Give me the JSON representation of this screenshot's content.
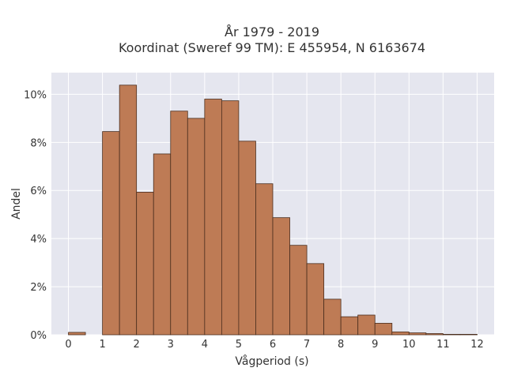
{
  "chart_data": {
    "type": "bar",
    "title": "År 1979 - 2019",
    "subtitle": "Koordinat (Sweref 99 TM): E 455954, N 6163674",
    "xlabel": "Vågperiod (s)",
    "ylabel": "Andel",
    "x_ticks": [
      "0",
      "1",
      "2",
      "3",
      "4",
      "5",
      "6",
      "7",
      "8",
      "9",
      "10",
      "11",
      "12"
    ],
    "y_ticks": [
      "0%",
      "2%",
      "4%",
      "6%",
      "8%",
      "10%"
    ],
    "y_tick_values": [
      0,
      2,
      4,
      6,
      8,
      10
    ],
    "xlim": [
      -0.5,
      12.5
    ],
    "ylim": [
      0,
      10.9
    ],
    "grid": true,
    "bin_width": 0.5,
    "bins": [
      {
        "x0": 0.0,
        "x1": 0.5,
        "value": 0.1
      },
      {
        "x0": 0.5,
        "x1": 1.0,
        "value": 0.0
      },
      {
        "x0": 1.0,
        "x1": 1.5,
        "value": 8.45
      },
      {
        "x0": 1.5,
        "x1": 2.0,
        "value": 10.38
      },
      {
        "x0": 2.0,
        "x1": 2.5,
        "value": 5.93
      },
      {
        "x0": 2.5,
        "x1": 3.0,
        "value": 7.52
      },
      {
        "x0": 3.0,
        "x1": 3.5,
        "value": 9.3
      },
      {
        "x0": 3.5,
        "x1": 4.0,
        "value": 9.0
      },
      {
        "x0": 4.0,
        "x1": 4.5,
        "value": 9.8
      },
      {
        "x0": 4.5,
        "x1": 5.0,
        "value": 9.73
      },
      {
        "x0": 5.0,
        "x1": 5.5,
        "value": 8.05
      },
      {
        "x0": 5.5,
        "x1": 6.0,
        "value": 6.28
      },
      {
        "x0": 6.0,
        "x1": 6.5,
        "value": 4.87
      },
      {
        "x0": 6.5,
        "x1": 7.0,
        "value": 3.72
      },
      {
        "x0": 7.0,
        "x1": 7.5,
        "value": 2.96
      },
      {
        "x0": 7.5,
        "x1": 8.0,
        "value": 1.48
      },
      {
        "x0": 8.0,
        "x1": 8.5,
        "value": 0.75
      },
      {
        "x0": 8.5,
        "x1": 9.0,
        "value": 0.82
      },
      {
        "x0": 9.0,
        "x1": 9.5,
        "value": 0.48
      },
      {
        "x0": 9.5,
        "x1": 10.0,
        "value": 0.12
      },
      {
        "x0": 10.0,
        "x1": 10.5,
        "value": 0.08
      },
      {
        "x0": 10.5,
        "x1": 11.0,
        "value": 0.05
      },
      {
        "x0": 11.0,
        "x1": 11.5,
        "value": 0.02
      },
      {
        "x0": 11.5,
        "x1": 12.0,
        "value": 0.02
      }
    ],
    "colors": {
      "bar_fill": "#be7b55",
      "bar_stroke": "#4a2e1e",
      "plot_bg": "#e5e6ef",
      "grid": "#ffffff"
    }
  }
}
